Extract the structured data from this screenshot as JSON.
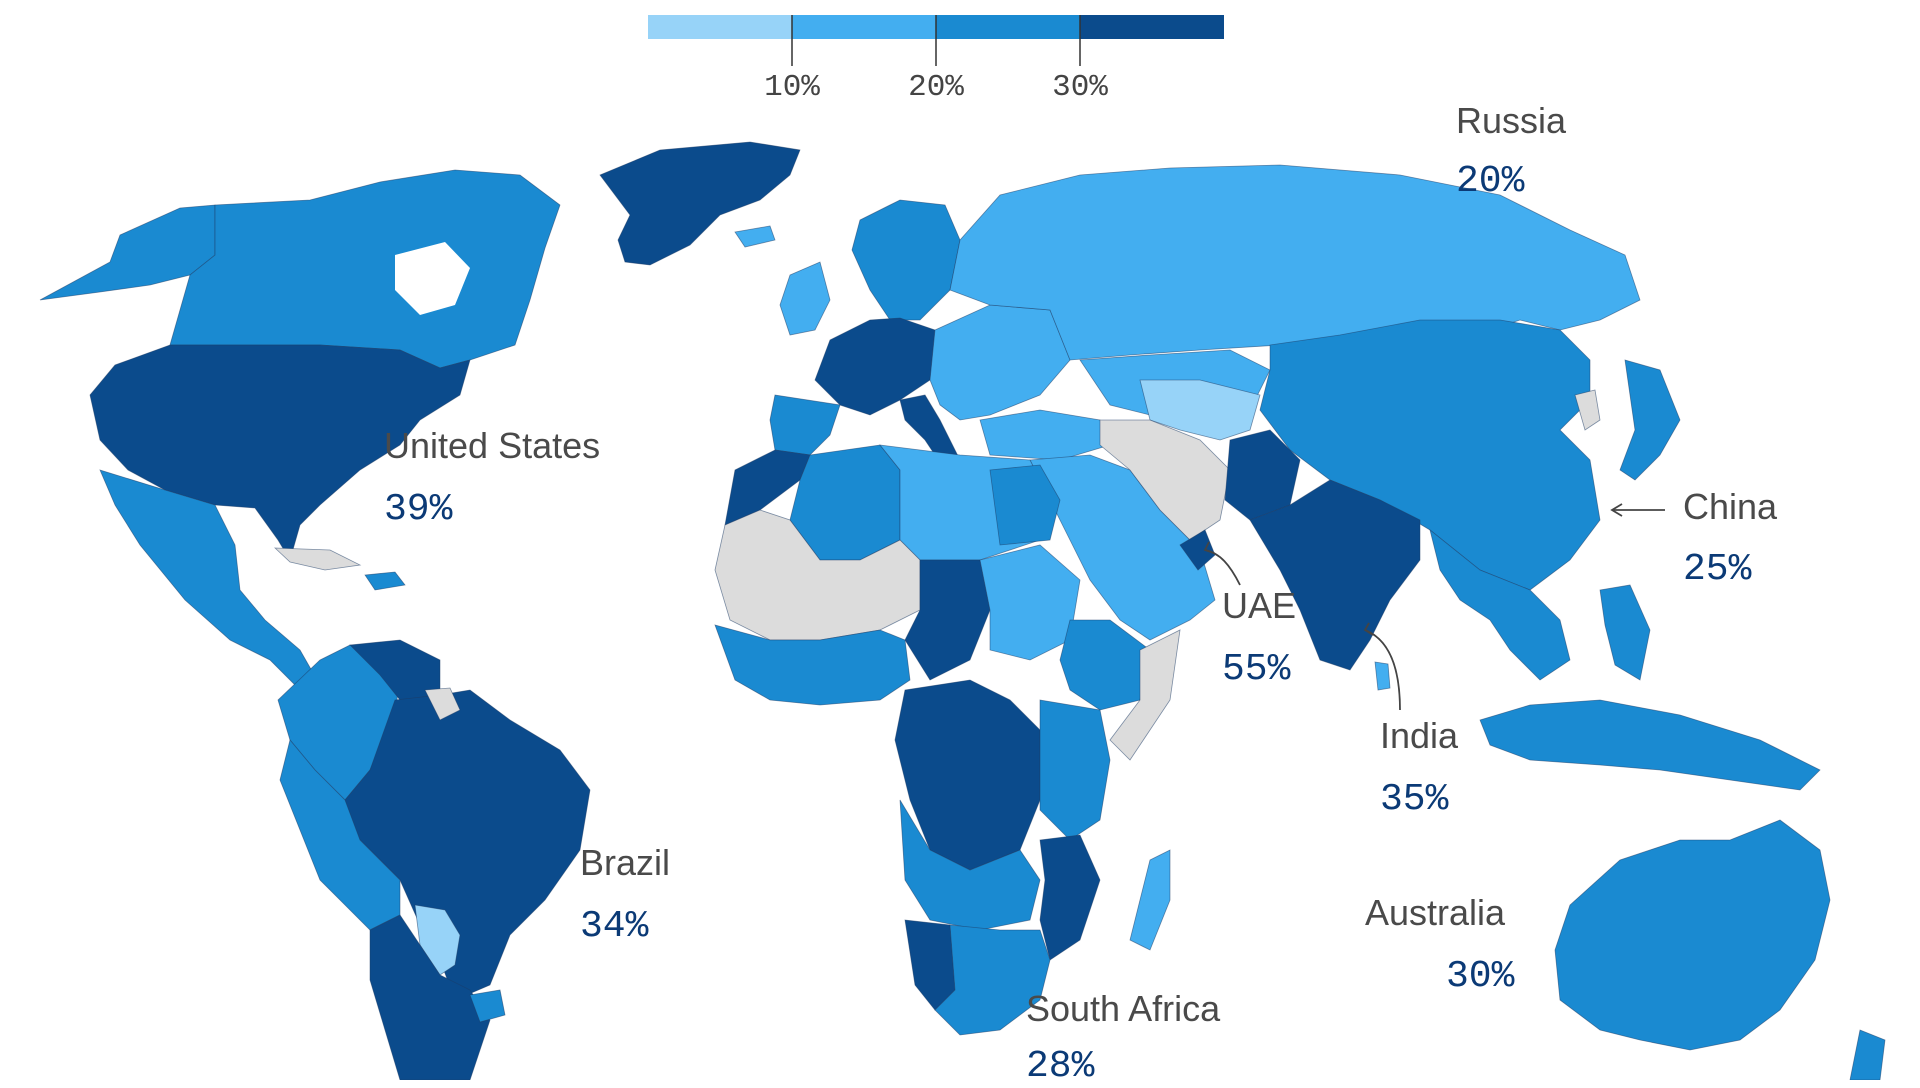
{
  "legend": {
    "colors": [
      "#97d3f8",
      "#43aef0",
      "#1a8ad1",
      "#0b4b8c"
    ],
    "ticks": [
      "10%",
      "20%",
      "30%"
    ]
  },
  "map": {
    "colors": {
      "light": "#97d3f8",
      "mid_light": "#43aef0",
      "mid_dark": "#1a8ad1",
      "dark": "#0b4b8c",
      "no_data": "#dcdcdc",
      "text_label": "#4a4a4a",
      "text_value": "#0b3a76"
    }
  },
  "callouts": [
    {
      "name": "Russia",
      "value": "20%"
    },
    {
      "name": "United States",
      "value": "39%"
    },
    {
      "name": "China",
      "value": "25%"
    },
    {
      "name": "UAE",
      "value": "55%"
    },
    {
      "name": "India",
      "value": "35%"
    },
    {
      "name": "Brazil",
      "value": "34%"
    },
    {
      "name": "Australia",
      "value": "30%"
    },
    {
      "name": "South Africa",
      "value": "28%"
    }
  ]
}
